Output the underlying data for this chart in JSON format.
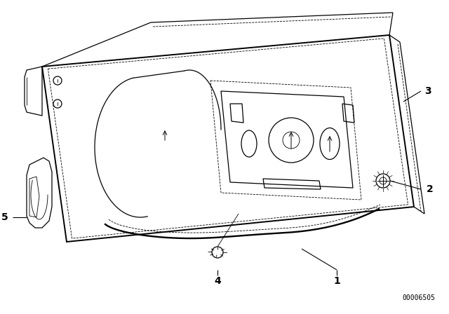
{
  "background_color": "#ffffff",
  "figure_width": 6.4,
  "figure_height": 4.48,
  "dpi": 100,
  "catalog_number": "00006505",
  "line_color": "#000000",
  "text_color": "#000000",
  "label_fontsize": 10,
  "catalog_fontsize": 7,
  "lw_main": 1.4,
  "lw_med": 0.9,
  "lw_thin": 0.6,
  "lw_dot": 0.5
}
